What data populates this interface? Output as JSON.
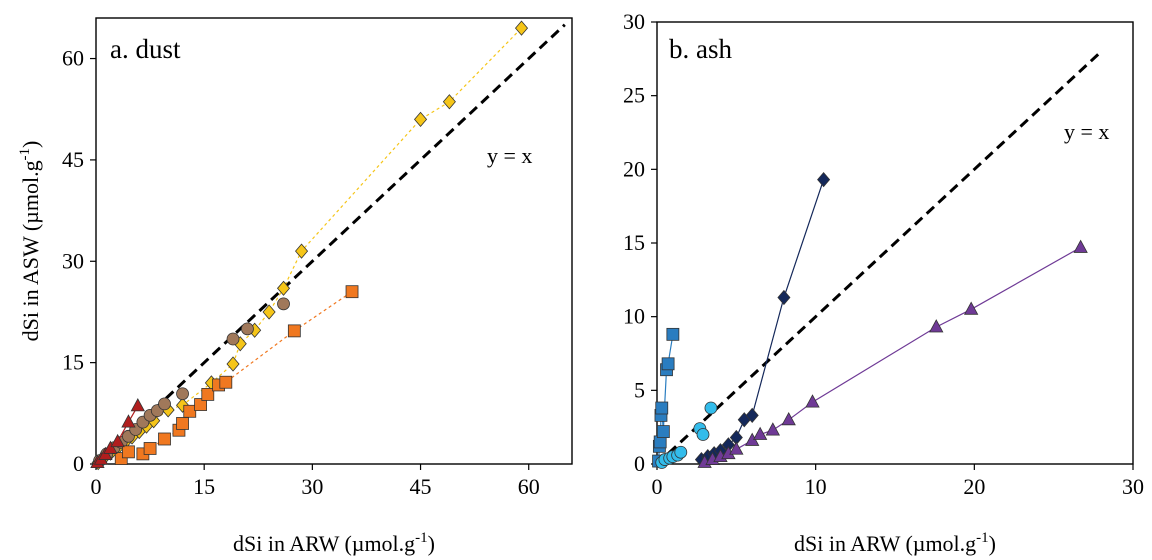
{
  "chart_data": [
    {
      "type": "scatter",
      "panel_label": "a. dust",
      "xlabel": "dSi in ARW (µmol.g",
      "ylabel": "dSi in ASW (µmol.g",
      "unit_sup": "-1",
      "unit_close": ")",
      "xlim": [
        0,
        66
      ],
      "ylim": [
        0,
        66
      ],
      "xticks": [
        0,
        15,
        30,
        45,
        60
      ],
      "yticks": [
        0,
        15,
        30,
        45,
        60
      ],
      "reference_line": {
        "label": "y = x",
        "x": [
          0,
          65
        ],
        "y": [
          0,
          65
        ]
      },
      "series": [
        {
          "marker": "diamond",
          "color": "#F5C518",
          "line": "dashed",
          "x": [
            0.3,
            1,
            2,
            3,
            4,
            5,
            6,
            7,
            8,
            10,
            12,
            16,
            19,
            20,
            22,
            24,
            26,
            28.5,
            45,
            49,
            59
          ],
          "y": [
            0.2,
            0.8,
            1.6,
            2.4,
            3.2,
            4,
            4.8,
            5.6,
            6.4,
            8,
            8.7,
            12,
            14.8,
            17.8,
            19.8,
            22.5,
            26,
            31.5,
            51,
            53.6,
            64.5
          ]
        },
        {
          "marker": "circle",
          "color": "#A0785A",
          "line": "none",
          "x": [
            0.5,
            1.5,
            2.5,
            3.5,
            4.5,
            5.5,
            6.5,
            7.5,
            8.5,
            9.5,
            12,
            19,
            21,
            26
          ],
          "y": [
            0.5,
            1.5,
            2.4,
            3.2,
            4.1,
            5.1,
            6.2,
            7.2,
            7.9,
            8.9,
            10.4,
            18.5,
            20,
            23.7
          ]
        },
        {
          "marker": "square",
          "color": "#F07820",
          "line": "dashed",
          "x": [
            3.5,
            4.5,
            6.5,
            7.5,
            9.5,
            11.5,
            12,
            13,
            14.5,
            15.5,
            17,
            18,
            27.5,
            35.5
          ],
          "y": [
            0.8,
            1.8,
            1.5,
            2.3,
            3.7,
            5,
            6,
            7.8,
            8.8,
            10.3,
            11.7,
            12.1,
            19.7,
            25.5
          ]
        },
        {
          "marker": "triangle",
          "color": "#B01E1E",
          "line": "solid",
          "x": [
            0.2,
            0.7,
            1.3,
            2,
            3,
            4.5,
            5.8
          ],
          "y": [
            0.2,
            0.7,
            1.4,
            2.3,
            3.3,
            6.2,
            8.6
          ]
        }
      ]
    },
    {
      "type": "scatter",
      "panel_label": "b. ash",
      "xlabel": "dSi in ARW (µmol.g",
      "ylabel": "",
      "unit_sup": "-1",
      "unit_close": ")",
      "xlim": [
        0,
        30
      ],
      "ylim": [
        0,
        30
      ],
      "xticks": [
        0,
        10,
        20,
        30
      ],
      "yticks": [
        0,
        5,
        10,
        15,
        20,
        25,
        30
      ],
      "reference_line": {
        "label": "y = x",
        "x": [
          0,
          28
        ],
        "y": [
          0,
          28
        ]
      },
      "series": [
        {
          "marker": "square",
          "color": "#2A7DC0",
          "line": "solid",
          "x": [
            0.1,
            0.15,
            0.2,
            0.25,
            0.3,
            0.4,
            0.6,
            0.7,
            1.0
          ],
          "y": [
            0.2,
            1.2,
            1.5,
            3.3,
            3.8,
            2.2,
            6.4,
            6.8,
            8.8
          ]
        },
        {
          "marker": "circle",
          "color": "#33BCEB",
          "line": "none",
          "x": [
            0.3,
            0.5,
            0.8,
            1.0,
            1.3,
            1.5,
            2.7,
            2.9,
            3.4
          ],
          "y": [
            0.1,
            0.3,
            0.4,
            0.5,
            0.6,
            0.8,
            2.4,
            2.0,
            3.8
          ]
        },
        {
          "marker": "diamond",
          "color": "#14285A",
          "line": "solid",
          "x": [
            2.8,
            3.2,
            3.6,
            4.0,
            4.5,
            5.0,
            5.5,
            6.0,
            8.0,
            10.5
          ],
          "y": [
            0.3,
            0.5,
            0.7,
            0.9,
            1.3,
            1.8,
            3.0,
            3.3,
            11.3,
            19.3
          ]
        },
        {
          "marker": "triangle",
          "color": "#6F3A96",
          "line": "solid",
          "x": [
            3.0,
            3.5,
            4.0,
            4.5,
            5.0,
            6.0,
            6.5,
            7.3,
            8.3,
            9.8,
            17.6,
            19.8,
            26.7
          ],
          "y": [
            0.1,
            0.3,
            0.5,
            0.7,
            1.0,
            1.6,
            2.0,
            2.3,
            3.0,
            4.2,
            9.3,
            10.5,
            14.7
          ]
        }
      ]
    }
  ]
}
